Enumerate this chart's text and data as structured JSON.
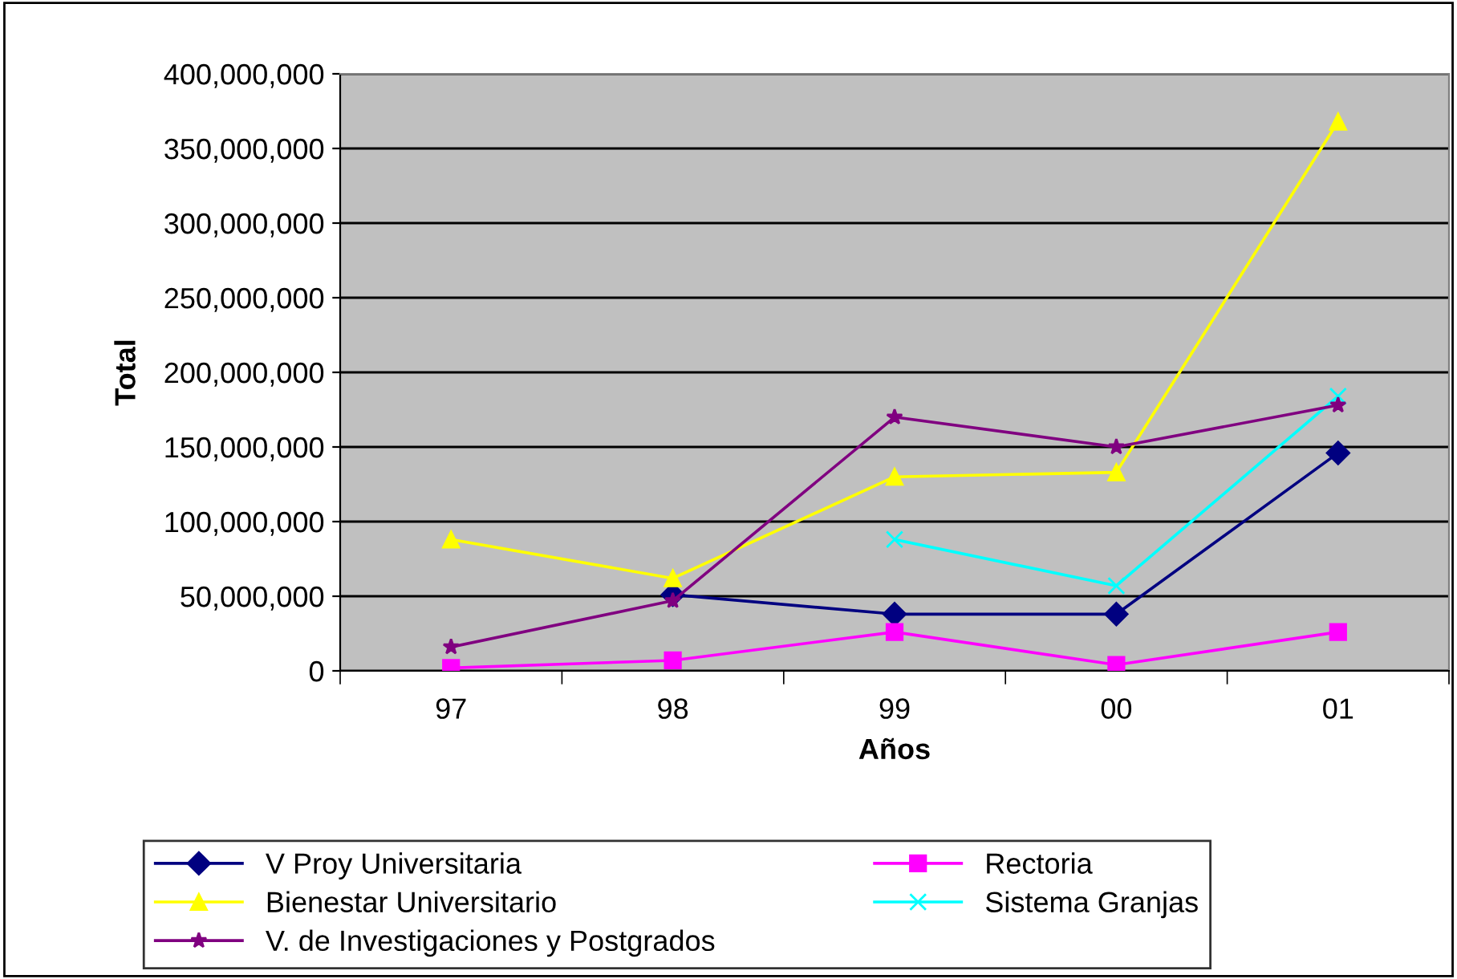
{
  "chart_data": {
    "type": "line",
    "xlabel": "Años",
    "ylabel": "Total",
    "categories": [
      "97",
      "98",
      "99",
      "00",
      "01"
    ],
    "series": [
      {
        "name": "V Proy Universitaria",
        "color": "#000080",
        "marker": "diamond",
        "values": [
          null,
          51000000,
          38000000,
          38000000,
          146000000
        ]
      },
      {
        "name": "Rectoria",
        "color": "#ff00ff",
        "marker": "square",
        "values": [
          2000000,
          7000000,
          26000000,
          4000000,
          26000000
        ]
      },
      {
        "name": "Bienestar Universitario",
        "color": "#ffff00",
        "marker": "triangle",
        "values": [
          88000000,
          62000000,
          130000000,
          133000000,
          368000000
        ]
      },
      {
        "name": "Sistema Granjas",
        "color": "#00ffff",
        "marker": "cross",
        "values": [
          null,
          null,
          88000000,
          57000000,
          184000000
        ]
      },
      {
        "name": "V. de Investigaciones y Postgrados",
        "color": "#800080",
        "marker": "star",
        "values": [
          16000000,
          47000000,
          170000000,
          150000000,
          178000000
        ]
      }
    ],
    "ylim": [
      0,
      400000000
    ],
    "yticks": [
      {
        "value": 0,
        "label": "0"
      },
      {
        "value": 50000000,
        "label": "50,000,000"
      },
      {
        "value": 100000000,
        "label": "100,000,000"
      },
      {
        "value": 150000000,
        "label": "150,000,000"
      },
      {
        "value": 200000000,
        "label": "200,000,000"
      },
      {
        "value": 250000000,
        "label": "250,000,000"
      },
      {
        "value": 300000000,
        "label": "300,000,000"
      },
      {
        "value": 350000000,
        "label": "350,000,000"
      },
      {
        "value": 400000000,
        "label": "400,000,000"
      }
    ],
    "grid": "y",
    "legend": "bottom",
    "line_style": "solid"
  }
}
